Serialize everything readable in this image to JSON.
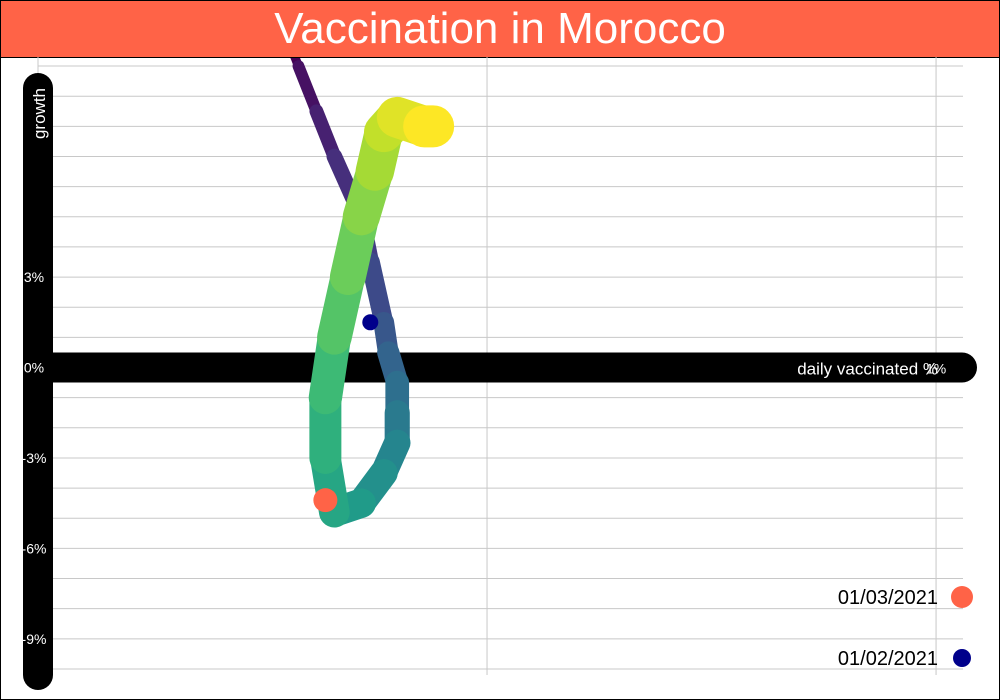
{
  "title": "Vaccination in Morocco",
  "chart_data": {
    "type": "line",
    "title": "Vaccination in Morocco",
    "xlabel": "daily vaccinated %",
    "ylabel": "growth",
    "x_unit": "%",
    "y_unit": "%",
    "xlim": [
      0,
      1.03
    ],
    "ylim": [
      -10.2,
      10.3
    ],
    "x_ticks": [
      {
        "value": 0,
        "label": "0%"
      },
      {
        "value": 1,
        "label": "1%"
      }
    ],
    "y_ticks": [
      {
        "value": 3,
        "label": "3%"
      },
      {
        "value": 0,
        "label": "0%"
      },
      {
        "value": -3,
        "label": "-3%"
      },
      {
        "value": -6,
        "label": "-6%"
      },
      {
        "value": -9,
        "label": "-9%"
      }
    ],
    "grid": true,
    "color_scale": "viridis",
    "series": [
      {
        "x": [
          0.27,
          0.29,
          0.31,
          0.33,
          0.36,
          0.37,
          0.385,
          0.39,
          0.4,
          0.4,
          0.4,
          0.385,
          0.36,
          0.33,
          0.32,
          0.32,
          0.33,
          0.345,
          0.36,
          0.375,
          0.385,
          0.4,
          0.43,
          0.44
        ],
        "y": [
          11.5,
          10.0,
          8.5,
          7.0,
          5.0,
          3.5,
          1.5,
          0.5,
          -0.5,
          -1.5,
          -2.5,
          -3.5,
          -4.5,
          -4.8,
          -3.0,
          -1.0,
          1.0,
          3.0,
          5.0,
          6.5,
          7.8,
          8.3,
          8.0,
          8.0
        ]
      }
    ],
    "markers": [
      {
        "label": "01/02/2021",
        "x": 0.37,
        "y": 1.5,
        "color": "#00008b"
      },
      {
        "label": "01/03/2021",
        "x": 0.32,
        "y": -4.4,
        "color": "#ff6347"
      }
    ],
    "legend_position": "bottom-right"
  }
}
